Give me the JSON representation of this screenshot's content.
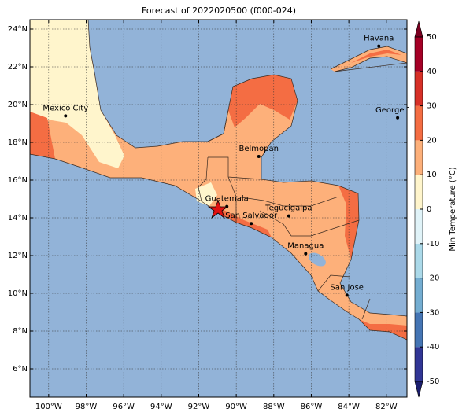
{
  "map": {
    "title": "Forecast of 2022020500 (f000-024)",
    "xlim": [
      -101,
      -80.9
    ],
    "ylim": [
      4.5,
      24.5
    ],
    "xticks": [
      {
        "value": -100,
        "label": "100°W"
      },
      {
        "value": -98,
        "label": "98°W"
      },
      {
        "value": -96,
        "label": "96°W"
      },
      {
        "value": -94,
        "label": "94°W"
      },
      {
        "value": -92,
        "label": "92°W"
      },
      {
        "value": -90,
        "label": "90°W"
      },
      {
        "value": -88,
        "label": "88°W"
      },
      {
        "value": -86,
        "label": "86°W"
      },
      {
        "value": -84,
        "label": "84°W"
      },
      {
        "value": -82,
        "label": "82°W"
      }
    ],
    "yticks": [
      {
        "value": 6,
        "label": "6°N"
      },
      {
        "value": 8,
        "label": "8°N"
      },
      {
        "value": 10,
        "label": "10°N"
      },
      {
        "value": 12,
        "label": "12°N"
      },
      {
        "value": 14,
        "label": "14°N"
      },
      {
        "value": 16,
        "label": "16°N"
      },
      {
        "value": 18,
        "label": "18°N"
      },
      {
        "value": 20,
        "label": "20°N"
      },
      {
        "value": 22,
        "label": "22°N"
      },
      {
        "value": 24,
        "label": "24°N"
      }
    ],
    "grid": true,
    "places": [
      {
        "name": "Havana",
        "lon": -82.4,
        "lat": 23.1
      },
      {
        "name": "Mexico City",
        "lon": -99.1,
        "lat": 19.4
      },
      {
        "name": "George Tov",
        "lon": -81.4,
        "lat": 19.3
      },
      {
        "name": "Belmopan",
        "lon": -88.8,
        "lat": 17.25
      },
      {
        "name": "Guatemala",
        "lon": -90.5,
        "lat": 14.6
      },
      {
        "name": "San Salvador",
        "lon": -89.2,
        "lat": 13.7
      },
      {
        "name": "Tegucigalpa",
        "lon": -87.2,
        "lat": 14.1
      },
      {
        "name": "Managua",
        "lon": -86.3,
        "lat": 12.1
      },
      {
        "name": "San Jose",
        "lon": -84.1,
        "lat": 9.9
      }
    ],
    "colorbar": {
      "label": "Min Temperature (°C)",
      "lim": [
        -50,
        50
      ],
      "ticks": [
        -50,
        -40,
        -30,
        -20,
        -10,
        0,
        10,
        20,
        30,
        40,
        50
      ],
      "colors": [
        "#313695",
        "#4575b4",
        "#74add1",
        "#abd9e9",
        "#e0f3f8",
        "#fff5cc",
        "#fdb07a",
        "#f46d43",
        "#d73027",
        "#a50026"
      ],
      "under_color": "#1b1e6e",
      "over_color": "#7a0020"
    }
  }
}
